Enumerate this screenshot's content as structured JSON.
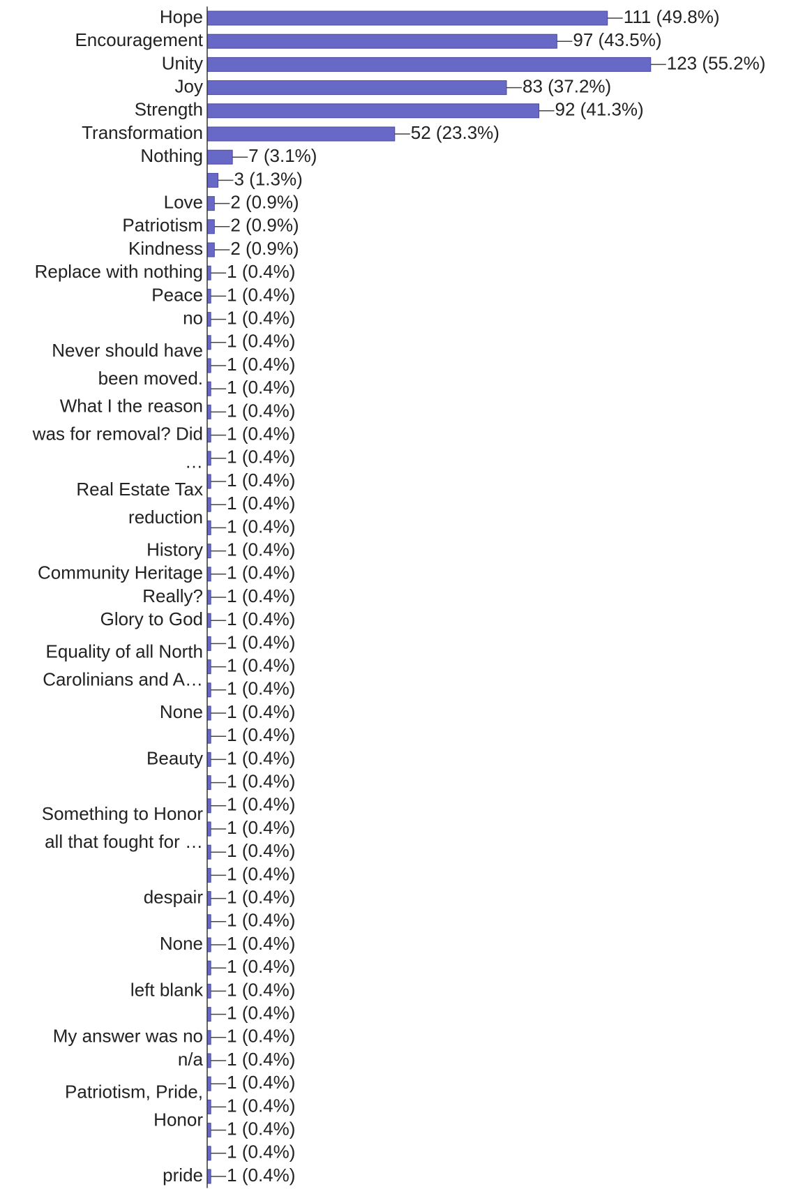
{
  "chart_data": {
    "type": "hbar",
    "categories": [
      "Hope",
      "Encouragement",
      "Unity",
      "Joy",
      "Strength",
      "Transformation",
      "Nothing",
      null,
      "Love",
      "Patriotism",
      "Kindness",
      "Replace with nothing",
      "Peace",
      "no",
      null,
      [
        "Never should have",
        "been moved."
      ],
      null,
      null,
      [
        "What I the reason",
        "was for removal? Did",
        "…"
      ],
      null,
      null,
      [
        "Real Estate Tax",
        "reduction"
      ],
      null,
      "History",
      "Community Heritage",
      "Really?",
      "Glory to God",
      null,
      [
        "Equality of all North",
        "Carolinians and A…"
      ],
      null,
      "None",
      null,
      "Beauty",
      null,
      null,
      [
        "Something to Honor",
        "all that fought for …"
      ],
      null,
      null,
      "despair",
      null,
      "None",
      null,
      "left blank",
      null,
      "My answer was no",
      "n/a",
      null,
      [
        "Patriotism, Pride,",
        "Honor"
      ],
      null,
      null,
      "pride"
    ],
    "values": [
      111,
      97,
      123,
      83,
      92,
      52,
      7,
      3,
      2,
      2,
      2,
      1,
      1,
      1,
      1,
      1,
      1,
      1,
      1,
      1,
      1,
      1,
      1,
      1,
      1,
      1,
      1,
      1,
      1,
      1,
      1,
      1,
      1,
      1,
      1,
      1,
      1,
      1,
      1,
      1,
      1,
      1,
      1,
      1,
      1,
      1,
      1,
      1,
      1,
      1,
      1
    ],
    "value_labels": [
      "111 (49.8%)",
      "97 (43.5%)",
      "123 (55.2%)",
      "83 (37.2%)",
      "92 (41.3%)",
      "52 (23.3%)",
      "7 (3.1%)",
      "3 (1.3%)",
      "2 (0.9%)",
      "2 (0.9%)",
      "2 (0.9%)",
      "1 (0.4%)",
      "1 (0.4%)",
      "1 (0.4%)",
      "1 (0.4%)",
      "1 (0.4%)",
      "1 (0.4%)",
      "1 (0.4%)",
      "1 (0.4%)",
      "1 (0.4%)",
      "1 (0.4%)",
      "1 (0.4%)",
      "1 (0.4%)",
      "1 (0.4%)",
      "1 (0.4%)",
      "1 (0.4%)",
      "1 (0.4%)",
      "1 (0.4%)",
      "1 (0.4%)",
      "1 (0.4%)",
      "1 (0.4%)",
      "1 (0.4%)",
      "1 (0.4%)",
      "1 (0.4%)",
      "1 (0.4%)",
      "1 (0.4%)",
      "1 (0.4%)",
      "1 (0.4%)",
      "1 (0.4%)",
      "1 (0.4%)",
      "1 (0.4%)",
      "1 (0.4%)",
      "1 (0.4%)",
      "1 (0.4%)",
      "1 (0.4%)",
      "1 (0.4%)",
      "1 (0.4%)",
      "1 (0.4%)",
      "1 (0.4%)",
      "1 (0.4%)",
      "1 (0.4%)"
    ],
    "color": "#6868c6",
    "xlim": [
      0,
      160
    ]
  }
}
